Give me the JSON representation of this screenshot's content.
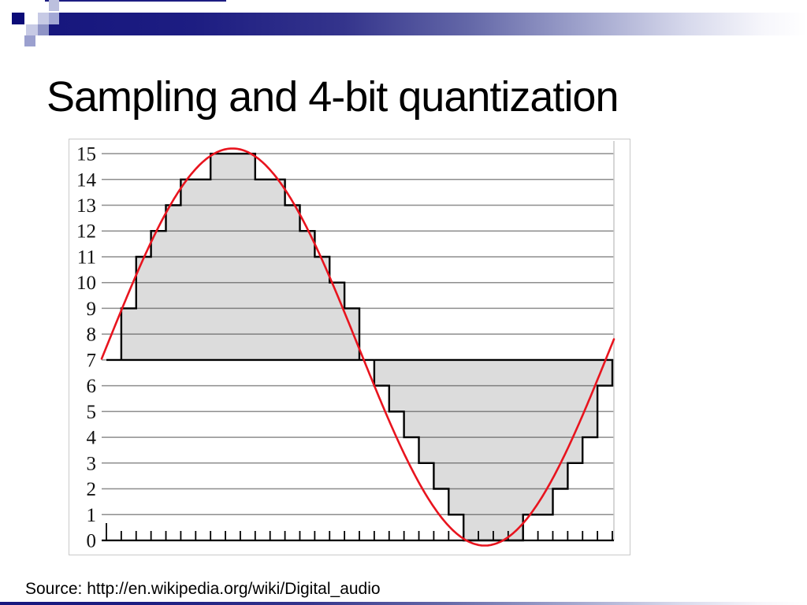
{
  "slide": {
    "title": "Sampling and 4-bit quantization",
    "source_text": "Source: http://en.wikipedia.org/wiki/Digital_audio"
  },
  "chart_data": {
    "type": "line",
    "description_of_plot": "Analog sine signal (red) sampled and quantized to 4-bit levels (gray staircase)",
    "ylim": [
      0,
      15
    ],
    "y_labels": [
      "0",
      "1",
      "2",
      "3",
      "4",
      "5",
      "6",
      "7",
      "8",
      "9",
      "10",
      "11",
      "12",
      "13",
      "14",
      "15"
    ],
    "x_axis": {
      "tick_count": 35,
      "tick_labels_shown": false
    },
    "grid": true,
    "grid_color": "#8e8e8e",
    "border_color": "#c9c9c9",
    "series": [
      {
        "name": "analog-signal",
        "type": "sine",
        "midline_level": 7.5,
        "amplitude_levels": 7.7,
        "color": "#e8141e"
      },
      {
        "name": "quantized-samples",
        "type": "staircase",
        "cap_level": 7,
        "values": [
          7,
          9,
          11,
          12,
          13,
          14,
          14,
          15,
          15,
          15,
          14,
          14,
          13,
          12,
          11,
          10,
          9,
          7,
          6,
          5,
          4,
          3,
          2,
          1,
          0,
          0,
          0,
          0,
          1,
          1,
          2,
          3,
          4,
          6
        ],
        "fill": "#d4d4d4",
        "stroke": "#000000"
      }
    ]
  },
  "decoration": {
    "accent_navy": "#17177e",
    "periwinkle_light": "#c7cae5",
    "periwinkle_mid": "#9ba0cf",
    "periwinkle_dark": "#8f94c6"
  }
}
